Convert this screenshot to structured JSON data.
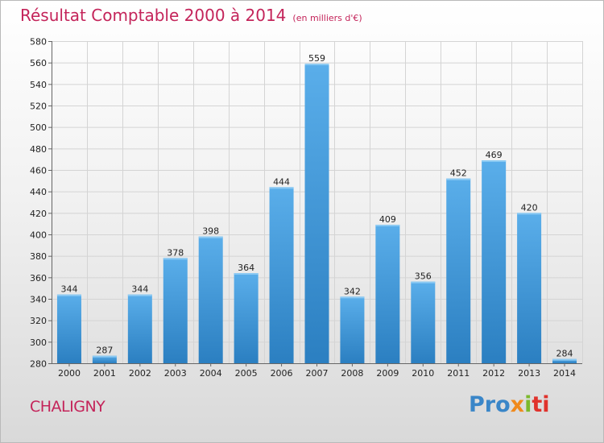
{
  "chart_data": {
    "type": "bar",
    "title": "Résultat Comptable 2000 à 2014",
    "subtitle": "(en milliers d'€)",
    "categories": [
      "2000",
      "2001",
      "2002",
      "2003",
      "2004",
      "2005",
      "2006",
      "2007",
      "2008",
      "2009",
      "2010",
      "2011",
      "2012",
      "2013",
      "2014"
    ],
    "values": [
      344,
      287,
      344,
      378,
      398,
      364,
      444,
      559,
      342,
      409,
      356,
      452,
      469,
      420,
      284
    ],
    "ylim": [
      280,
      580
    ],
    "yticks": [
      280,
      300,
      320,
      340,
      360,
      380,
      400,
      420,
      440,
      460,
      480,
      500,
      520,
      540,
      560,
      580
    ],
    "xlabel": "",
    "ylabel": "",
    "grid": true,
    "legend": "none"
  },
  "footer": {
    "city": "CHALIGNY",
    "logo": {
      "part1": "Pro",
      "part2": "x",
      "part3": "i",
      "part4": "ti"
    }
  },
  "colors": {
    "title": "#c4245a",
    "bar_top": "#5aaeea",
    "bar_bottom": "#2b7fc1",
    "grid": "#d4d4d4"
  }
}
